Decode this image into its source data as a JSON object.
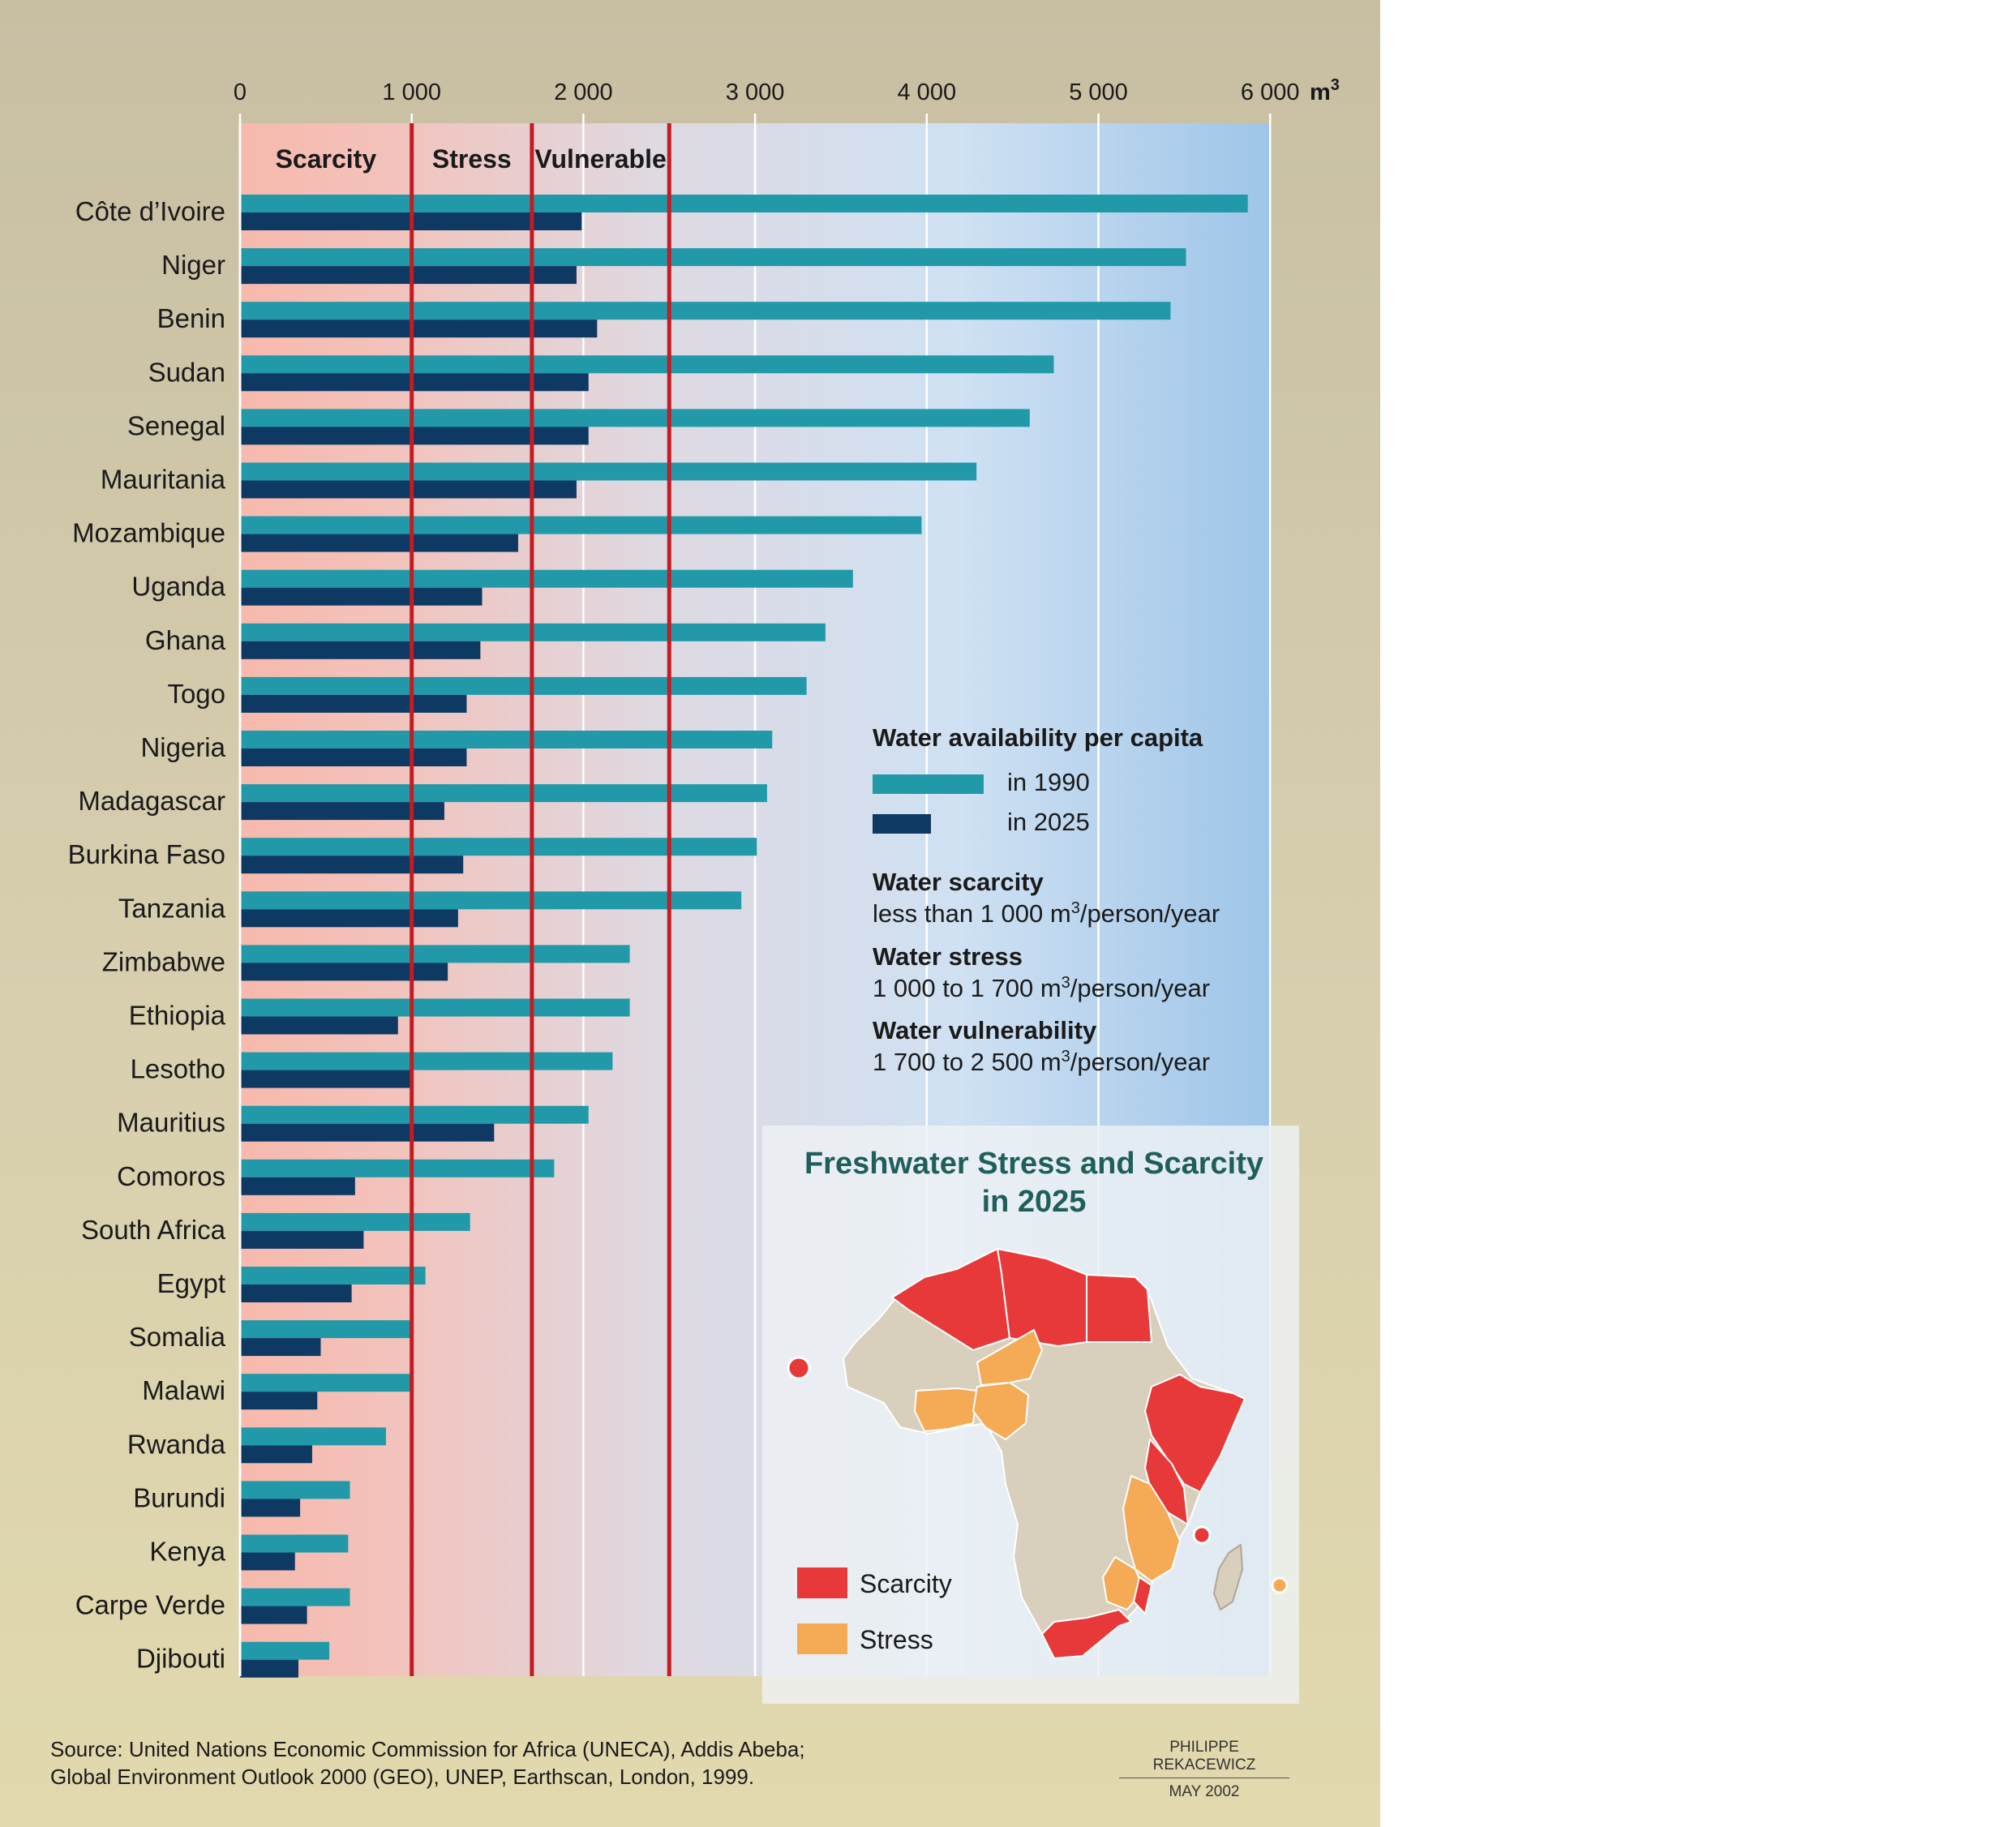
{
  "chart_data": {
    "type": "bar",
    "orientation": "horizontal",
    "unit": "m³",
    "xlim": [
      0,
      6000
    ],
    "x_ticks": [
      "0",
      "1 000",
      "2 000",
      "3 000",
      "4 000",
      "5 000",
      "6 000"
    ],
    "x_unit_label": "m",
    "x_unit_superscript": "3",
    "zones": [
      {
        "label": "Scarcity",
        "from": 0,
        "to": 1000
      },
      {
        "label": "Stress",
        "from": 1000,
        "to": 1700
      },
      {
        "label": "Vulnerable",
        "from": 1700,
        "to": 2500
      }
    ],
    "threshold_lines": [
      1000,
      1700,
      2500
    ],
    "categories": [
      "Côte d’Ivoire",
      "Niger",
      "Benin",
      "Sudan",
      "Senegal",
      "Mauritania",
      "Mozambique",
      "Uganda",
      "Ghana",
      "Togo",
      "Nigeria",
      "Madagascar",
      "Burkina Faso",
      "Tanzania",
      "Zimbabwe",
      "Ethiopia",
      "Lesotho",
      "Mauritius",
      "Comoros",
      "South Africa",
      "Egypt",
      "Somalia",
      "Malawi",
      "Rwanda",
      "Burundi",
      "Kenya",
      "Carpe Verde",
      "Djibouti"
    ],
    "series": [
      {
        "name": "in 1990",
        "color": "#2199a8",
        "values": [
          5870,
          5510,
          5420,
          4740,
          4600,
          4290,
          3970,
          3570,
          3410,
          3300,
          3100,
          3070,
          3010,
          2920,
          2270,
          2270,
          2170,
          2030,
          1830,
          1340,
          1080,
          990,
          990,
          850,
          640,
          630,
          640,
          520
        ]
      },
      {
        "name": "in 2025",
        "color": "#0d3963",
        "values": [
          1990,
          1960,
          2080,
          2030,
          2030,
          1960,
          1620,
          1410,
          1400,
          1320,
          1320,
          1190,
          1300,
          1270,
          1210,
          920,
          990,
          1480,
          670,
          720,
          650,
          470,
          450,
          420,
          350,
          320,
          390,
          340
        ]
      }
    ]
  },
  "legend": {
    "heading": "Water availability per capita",
    "items": [
      {
        "label": "in 1990",
        "color": "#2199a8"
      },
      {
        "label": "in 2025",
        "color": "#0d3963"
      }
    ],
    "definitions": [
      {
        "title": "Water scarcity",
        "text_before": "less than 1 000 m",
        "sup": "3",
        "text_after": "/person/year"
      },
      {
        "title": "Water stress",
        "text_before": "1 000 to 1 700 m",
        "sup": "3",
        "text_after": "/person/year"
      },
      {
        "title": "Water vulnerability",
        "text_before": "1 700 to 2 500 m",
        "sup": "3",
        "text_after": "/person/year"
      }
    ]
  },
  "map": {
    "title_line1": "Freshwater Stress and Scarcity",
    "title_line2": "in 2025",
    "legend": [
      {
        "label": "Scarcity",
        "color": "#e8393a"
      },
      {
        "label": "Stress",
        "color": "#f5aa55"
      }
    ],
    "land_color": "#d8cfbd"
  },
  "source": {
    "line1": "Source: United Nations Economic Commission for Africa (UNECA), Addis Abeba;",
    "line2": "Global Environment Outlook 2000 (GEO), UNEP, Earthscan, London, 1999."
  },
  "credit": {
    "author": "PHILIPPE REKACEWICZ",
    "date": "MAY 2002"
  }
}
